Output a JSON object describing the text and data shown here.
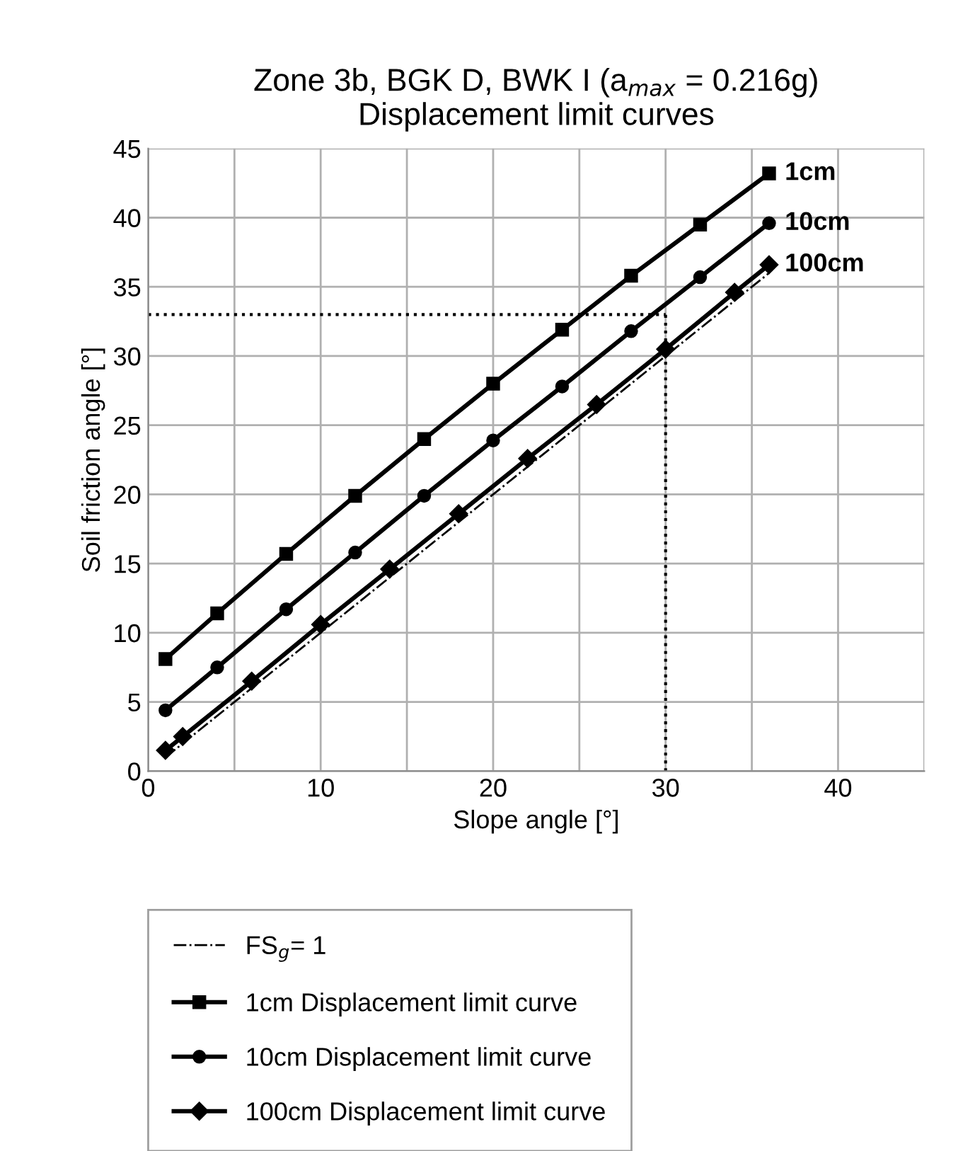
{
  "chart_data": {
    "type": "line",
    "title": "Zone 3b, BGK D, BWK I (a$_{max}$ = 0.216g)\nDisplacement limit curves",
    "xlabel": "Slope angle [°]",
    "ylabel": "Soil friction angle [°]",
    "xlim": [
      0,
      45
    ],
    "ylim": [
      0,
      45
    ],
    "xticks": [
      0,
      {
        "value": 5,
        "label": null
      },
      10,
      {
        "value": 15,
        "label": null
      },
      20,
      {
        "value": 25,
        "label": null
      },
      30,
      {
        "value": 35,
        "label": null
      },
      40,
      {
        "value": 45,
        "label": null
      }
    ],
    "yticks": [
      0,
      5,
      10,
      15,
      20,
      25,
      30,
      35,
      40,
      45
    ],
    "grid": true,
    "legend": "bottom",
    "series": [
      {
        "name": "FS$_{g}$= 1",
        "color": "#000000",
        "line_style": "dashdot",
        "marker": "none",
        "x": [
          1,
          36
        ],
        "values": [
          1,
          36
        ]
      },
      {
        "name": "1cm Displacement limit curve",
        "color": "#000000",
        "marker": "square",
        "x": [
          1,
          4,
          8,
          12,
          16,
          20,
          24,
          28,
          32,
          36
        ],
        "values": [
          8.1,
          11.4,
          15.7,
          19.9,
          24.0,
          28.0,
          31.9,
          35.8,
          39.5,
          43.2
        ]
      },
      {
        "name": "10cm Displacement limit curve",
        "color": "#000000",
        "marker": "circle",
        "x": [
          1,
          4,
          8,
          12,
          16,
          20,
          24,
          28,
          32,
          36
        ],
        "values": [
          4.4,
          7.5,
          11.7,
          15.8,
          19.9,
          23.9,
          27.8,
          31.8,
          35.7,
          39.6
        ]
      },
      {
        "name": "100cm Displacement limit curve",
        "color": "#000000",
        "marker": "diamond",
        "x": [
          1,
          2,
          6,
          10,
          14,
          18,
          22,
          26,
          30,
          34,
          36
        ],
        "values": [
          1.5,
          2.5,
          6.5,
          10.6,
          14.6,
          18.6,
          22.6,
          26.5,
          30.5,
          34.6,
          36.6
        ]
      }
    ],
    "ref_lines": [
      {
        "axis": "y",
        "value": 33,
        "line_style": "dotted",
        "color": "#000000"
      },
      {
        "axis": "x",
        "value": 30,
        "line_style": "dotted",
        "color": "#000000"
      }
    ],
    "annotations": [
      "1cm",
      "10cm",
      "100cm"
    ]
  }
}
